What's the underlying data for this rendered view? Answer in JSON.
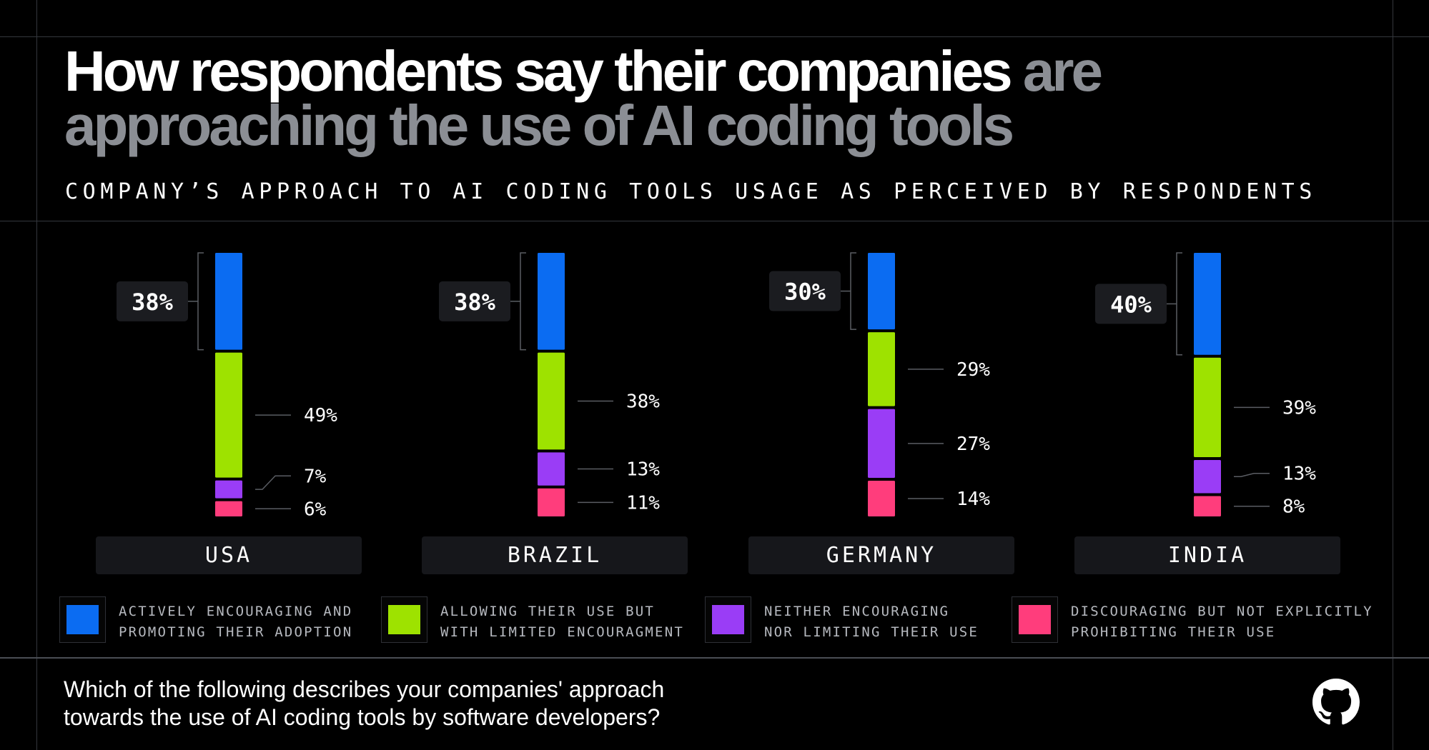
{
  "title": {
    "main": "How respondents say their companies",
    "accent": "are approaching the use of AI coding tools"
  },
  "subtitle": "COMPANY’S APPROACH TO AI CODING TOOLS USAGE AS PERCEIVED BY RESPONDENTS",
  "question": {
    "line1": "Which of the following describes your companies' approach",
    "line2": "towards the use of AI coding tools by software developers?"
  },
  "logo": "github-icon",
  "chart_data": {
    "type": "stacked-bar",
    "categories": [
      "USA",
      "BRAZIL",
      "GERMANY",
      "INDIA"
    ],
    "series": [
      {
        "name": "ACTIVELY ENCOURAGING AND PROMOTING THEIR ADOPTION",
        "legend_lines": [
          "ACTIVELY ENCOURAGING AND",
          "PROMOTING THEIR ADOPTION"
        ],
        "color": "#0b6cf2",
        "values": [
          38,
          38,
          30,
          40
        ]
      },
      {
        "name": "ALLOWING THEIR USE BUT WITH LIMITED ENCOURAGMENT",
        "legend_lines": [
          "ALLOWING THEIR USE BUT",
          "WITH LIMITED ENCOURAGMENT"
        ],
        "color": "#9ee200",
        "values": [
          49,
          38,
          29,
          39
        ]
      },
      {
        "name": "NEITHER ENCOURAGING NOR LIMITING THEIR USE",
        "legend_lines": [
          "NEITHER ENCOURAGING",
          "NOR LIMITING THEIR USE"
        ],
        "color": "#9a3df6",
        "values": [
          7,
          13,
          27,
          13
        ]
      },
      {
        "name": "DISCOURAGING BUT NOT EXPLICITLY PROHIBITING THEIR USE",
        "legend_lines": [
          "DISCOURAGING BUT NOT EXPLICITLY",
          "PROHIBITING THEIR USE"
        ],
        "color": "#ff3d7c",
        "values": [
          6,
          11,
          14,
          8
        ]
      }
    ],
    "value_format": "{v}%",
    "orientation": "vertical",
    "legend": "bottom",
    "grid": false
  }
}
